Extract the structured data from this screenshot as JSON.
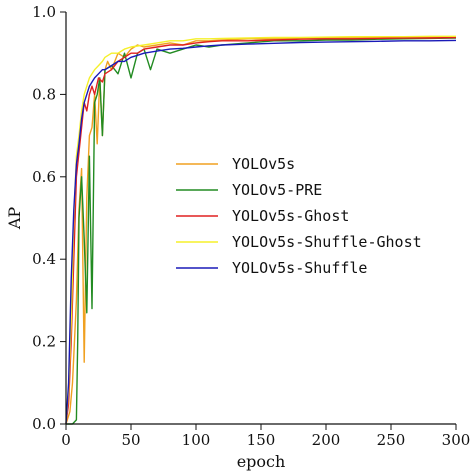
{
  "chart_data": {
    "type": "line",
    "title": "",
    "xlabel": "epoch",
    "ylabel": "AP",
    "xlim": [
      0,
      300
    ],
    "ylim": [
      0,
      1.0
    ],
    "xticks": [
      0,
      50,
      100,
      150,
      200,
      250,
      300
    ],
    "yticks": [
      0.0,
      0.2,
      0.4,
      0.6,
      0.8,
      1.0
    ],
    "xtick_labels": [
      "0",
      "50",
      "100",
      "150",
      "200",
      "250",
      "300"
    ],
    "ytick_labels": [
      "0.0",
      "0.2",
      "0.4",
      "0.6",
      "0.8",
      "1.0"
    ],
    "grid": false,
    "legend_position": "center-right",
    "series": [
      {
        "name": "YOLOv5s",
        "color": "#f0a020",
        "x": [
          0,
          3,
          5,
          8,
          10,
          12,
          14,
          16,
          18,
          20,
          22,
          24,
          26,
          28,
          30,
          32,
          35,
          40,
          45,
          50,
          55,
          60,
          70,
          80,
          90,
          100,
          110,
          120,
          140,
          160,
          180,
          200,
          220,
          240,
          260,
          280,
          300
        ],
        "values": [
          0.0,
          0.03,
          0.1,
          0.3,
          0.52,
          0.62,
          0.15,
          0.55,
          0.7,
          0.72,
          0.8,
          0.68,
          0.84,
          0.7,
          0.86,
          0.88,
          0.86,
          0.9,
          0.89,
          0.91,
          0.92,
          0.915,
          0.92,
          0.925,
          0.92,
          0.93,
          0.93,
          0.932,
          0.935,
          0.935,
          0.936,
          0.937,
          0.937,
          0.938,
          0.938,
          0.939,
          0.94
        ]
      },
      {
        "name": "YOLOv5-PRE",
        "color": "#228b22",
        "x": [
          0,
          5,
          8,
          9,
          10,
          12,
          14,
          16,
          18,
          20,
          22,
          24,
          26,
          28,
          30,
          35,
          40,
          45,
          50,
          55,
          60,
          65,
          70,
          80,
          90,
          100,
          110,
          120,
          140,
          160,
          180,
          200,
          220,
          240,
          260,
          280,
          300
        ],
        "values": [
          0.0,
          0.0,
          0.01,
          0.2,
          0.5,
          0.6,
          0.45,
          0.27,
          0.65,
          0.28,
          0.78,
          0.8,
          0.84,
          0.7,
          0.86,
          0.87,
          0.85,
          0.9,
          0.84,
          0.9,
          0.91,
          0.86,
          0.91,
          0.9,
          0.91,
          0.92,
          0.915,
          0.92,
          0.925,
          0.93,
          0.93,
          0.932,
          0.932,
          0.934,
          0.935,
          0.936,
          0.937
        ]
      },
      {
        "name": "YOLOv5s-Ghost",
        "color": "#e02020",
        "x": [
          0,
          2,
          4,
          6,
          8,
          10,
          12,
          14,
          16,
          18,
          20,
          22,
          25,
          28,
          30,
          35,
          40,
          45,
          50,
          55,
          60,
          70,
          80,
          90,
          100,
          110,
          120,
          140,
          160,
          180,
          200,
          220,
          240,
          260,
          280,
          300
        ],
        "values": [
          0.0,
          0.05,
          0.2,
          0.4,
          0.6,
          0.66,
          0.72,
          0.78,
          0.76,
          0.8,
          0.82,
          0.8,
          0.84,
          0.83,
          0.85,
          0.86,
          0.88,
          0.89,
          0.9,
          0.9,
          0.91,
          0.915,
          0.92,
          0.92,
          0.925,
          0.928,
          0.93,
          0.93,
          0.932,
          0.934,
          0.935,
          0.935,
          0.936,
          0.937,
          0.937,
          0.938
        ]
      },
      {
        "name": "YOLOv5s-Shuffle-Ghost",
        "color": "#f5f02a",
        "x": [
          0,
          2,
          4,
          6,
          8,
          10,
          12,
          14,
          16,
          18,
          20,
          22,
          25,
          28,
          30,
          35,
          40,
          45,
          50,
          60,
          70,
          80,
          90,
          100,
          110,
          120,
          140,
          160,
          180,
          200,
          220,
          240,
          260,
          280,
          300
        ],
        "values": [
          0.0,
          0.08,
          0.25,
          0.5,
          0.65,
          0.7,
          0.76,
          0.8,
          0.82,
          0.84,
          0.85,
          0.86,
          0.87,
          0.88,
          0.89,
          0.9,
          0.9,
          0.91,
          0.915,
          0.92,
          0.925,
          0.93,
          0.93,
          0.935,
          0.935,
          0.936,
          0.937,
          0.938,
          0.938,
          0.939,
          0.94,
          0.94,
          0.94,
          0.941,
          0.941
        ]
      },
      {
        "name": "YOLOv5s-Shuffle",
        "color": "#1a1ab8",
        "x": [
          0,
          2,
          4,
          6,
          8,
          10,
          12,
          14,
          16,
          18,
          20,
          22,
          25,
          28,
          30,
          35,
          40,
          45,
          50,
          55,
          60,
          70,
          80,
          90,
          100,
          110,
          120,
          140,
          160,
          180,
          200,
          220,
          240,
          260,
          280,
          300
        ],
        "values": [
          0.0,
          0.1,
          0.35,
          0.52,
          0.63,
          0.68,
          0.74,
          0.78,
          0.8,
          0.82,
          0.83,
          0.84,
          0.85,
          0.86,
          0.86,
          0.87,
          0.88,
          0.88,
          0.89,
          0.895,
          0.9,
          0.905,
          0.91,
          0.912,
          0.915,
          0.918,
          0.92,
          0.922,
          0.924,
          0.926,
          0.927,
          0.928,
          0.929,
          0.93,
          0.93,
          0.931
        ]
      }
    ]
  }
}
